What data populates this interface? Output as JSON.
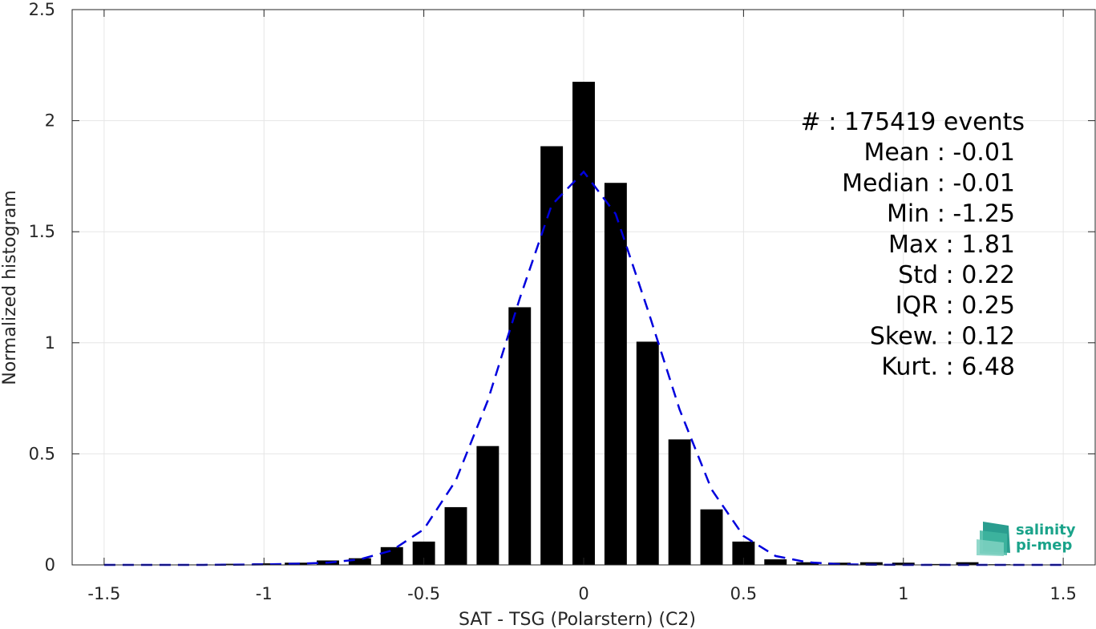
{
  "chart_data": {
    "type": "bar",
    "xlabel": "SAT - TSG (Polarstern) (C2)",
    "ylabel": "Normalized histogram",
    "xlim": [
      -1.6,
      1.6
    ],
    "ylim": [
      0,
      2.5
    ],
    "grid": true,
    "x_ticks": [
      -1.5,
      -1,
      -0.5,
      0,
      0.5,
      1,
      1.5
    ],
    "x_tick_labels": [
      "-1.5",
      "-1",
      "-0.5",
      "0",
      "0.5",
      "1",
      "1.5"
    ],
    "y_ticks": [
      0,
      0.5,
      1,
      1.5,
      2,
      2.5
    ],
    "y_tick_labels": [
      "0",
      "0.5",
      "1",
      "1.5",
      "2",
      "2.5"
    ],
    "bin_width": 0.1,
    "bar_color": "#000000",
    "bars": {
      "x": [
        -1.2,
        -1.1,
        -1.0,
        -0.9,
        -0.8,
        -0.7,
        -0.6,
        -0.5,
        -0.4,
        -0.3,
        -0.2,
        -0.1,
        0.0,
        0.1,
        0.2,
        0.3,
        0.4,
        0.5,
        0.6,
        0.7,
        0.8,
        0.9,
        1.0,
        1.1,
        1.2,
        1.3
      ],
      "values": [
        0.002,
        0.005,
        0.007,
        0.01,
        0.02,
        0.03,
        0.08,
        0.105,
        0.26,
        0.535,
        1.16,
        1.885,
        2.175,
        1.72,
        1.005,
        0.565,
        0.25,
        0.105,
        0.025,
        0.012,
        0.01,
        0.012,
        0.01,
        0.004,
        0.012,
        0.003
      ]
    },
    "fit_curve": {
      "style": "dashed",
      "color": "#0000dd",
      "x": [
        -1.5,
        -1.4,
        -1.3,
        -1.2,
        -1.1,
        -1.0,
        -0.9,
        -0.8,
        -0.7,
        -0.6,
        -0.5,
        -0.4,
        -0.3,
        -0.2,
        -0.1,
        0.0,
        0.1,
        0.2,
        0.3,
        0.4,
        0.5,
        0.6,
        0.7,
        0.8,
        0.9,
        1.0,
        1.1,
        1.2,
        1.3,
        1.4,
        1.5
      ],
      "values": [
        0,
        0,
        0,
        0,
        0.001,
        0.002,
        0.005,
        0.01,
        0.025,
        0.065,
        0.16,
        0.38,
        0.74,
        1.2,
        1.62,
        1.77,
        1.58,
        1.15,
        0.7,
        0.34,
        0.13,
        0.04,
        0.012,
        0.003,
        0.001,
        0,
        0,
        0,
        0,
        0,
        0
      ]
    },
    "stats_block": [
      "#  : 175419 events",
      "Mean : -0.01",
      "Median : -0.01",
      "Min : -1.25",
      "Max : 1.81",
      "Std : 0.22",
      "IQR : 0.25",
      "Skew. : 0.12",
      "Kurt. : 6.48"
    ]
  },
  "logo": {
    "line1": "salinity",
    "line2": "pi-mep",
    "color": "#1aa38a"
  }
}
